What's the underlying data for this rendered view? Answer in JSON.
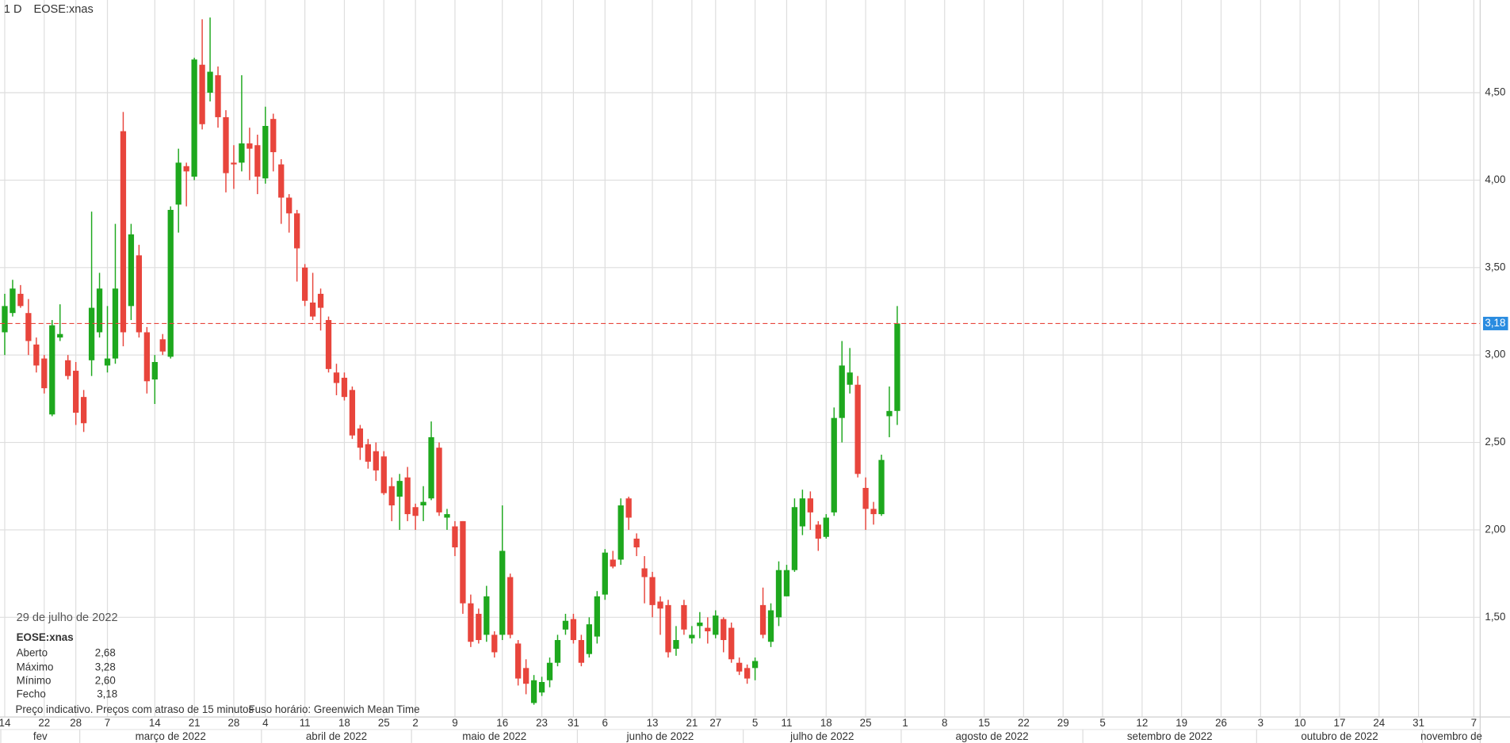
{
  "chart_data": {
    "type": "candlestick",
    "interval": "1 D",
    "symbol": "EOSE:xnas",
    "up_color": "#1ea81e",
    "down_color": "#e8453c",
    "grid": true,
    "open": [
      3.13,
      3.24,
      3.35,
      3.24,
      3.06,
      2.98,
      2.66,
      3.1,
      2.97,
      2.91,
      2.76,
      2.97,
      3.13,
      2.94,
      2.98,
      4.28,
      3.28,
      3.57,
      3.13,
      2.86,
      3.09,
      2.99,
      3.86,
      4.08,
      4.02,
      4.66,
      4.5,
      4.6,
      4.36,
      4.1,
      4.1,
      4.21,
      4.2,
      4.01,
      4.35,
      4.09,
      3.9,
      3.81,
      3.5,
      3.3,
      3.35,
      3.2,
      2.9,
      2.87,
      2.8,
      2.58,
      2.49,
      2.45,
      2.42,
      2.25,
      2.19,
      2.3,
      2.13,
      2.14,
      2.18,
      2.47,
      2.07,
      2.02,
      2.05,
      1.58,
      1.52,
      1.4,
      1.4,
      1.4,
      1.73,
      1.35,
      1.21,
      1.01,
      1.07,
      1.14,
      1.24,
      1.43,
      1.49,
      1.37,
      1.29,
      1.39,
      1.63,
      1.83,
      1.83,
      2.18,
      1.95,
      1.78,
      1.73,
      1.59,
      1.57,
      1.32,
      1.57,
      1.38,
      1.45,
      1.44,
      1.4,
      1.49,
      1.44,
      1.24,
      1.21,
      1.21,
      1.57,
      1.36,
      1.5,
      1.62,
      1.77,
      2.02,
      2.18,
      2.03,
      1.96,
      2.1,
      2.64,
      2.83,
      2.83,
      2.24,
      2.12,
      2.09,
      2.65,
      2.68
    ],
    "high": [
      3.35,
      3.43,
      3.4,
      3.32,
      3.1,
      3.0,
      3.2,
      3.29,
      3.0,
      2.96,
      2.8,
      3.82,
      3.47,
      3.28,
      3.75,
      4.39,
      3.75,
      3.63,
      3.16,
      3.0,
      3.12,
      3.85,
      4.18,
      4.1,
      4.7,
      4.92,
      4.93,
      4.65,
      4.4,
      4.2,
      4.6,
      4.3,
      4.26,
      4.42,
      4.38,
      4.12,
      3.92,
      3.83,
      3.52,
      3.47,
      3.38,
      3.22,
      2.95,
      2.9,
      2.82,
      2.6,
      2.52,
      2.5,
      2.45,
      2.3,
      2.32,
      2.36,
      2.15,
      2.25,
      2.62,
      2.5,
      2.12,
      2.05,
      2.05,
      1.63,
      1.55,
      1.68,
      1.42,
      2.14,
      1.75,
      1.37,
      1.26,
      1.17,
      1.16,
      1.27,
      1.4,
      1.52,
      1.52,
      1.4,
      1.5,
      1.65,
      1.89,
      1.88,
      2.18,
      2.19,
      1.98,
      1.85,
      1.76,
      1.62,
      1.6,
      1.45,
      1.6,
      1.45,
      1.53,
      1.5,
      1.54,
      1.5,
      1.47,
      1.27,
      1.23,
      1.27,
      1.67,
      1.58,
      1.82,
      1.8,
      2.18,
      2.23,
      2.22,
      2.05,
      2.09,
      2.7,
      3.08,
      3.04,
      2.88,
      2.3,
      2.16,
      2.43,
      2.82,
      3.28
    ],
    "low": [
      3.0,
      3.22,
      3.27,
      3.0,
      2.9,
      2.78,
      2.65,
      3.08,
      2.86,
      2.6,
      2.56,
      2.88,
      3.1,
      2.9,
      2.95,
      3.05,
      3.2,
      3.1,
      2.78,
      2.72,
      3.0,
      2.98,
      3.7,
      3.85,
      4.0,
      4.29,
      4.45,
      4.3,
      3.93,
      3.95,
      4.05,
      4.0,
      3.92,
      3.98,
      4.05,
      3.75,
      3.7,
      3.42,
      3.28,
      3.2,
      3.14,
      2.9,
      2.77,
      2.74,
      2.52,
      2.4,
      2.35,
      2.28,
      2.2,
      2.05,
      2.0,
      2.05,
      2.0,
      2.05,
      2.17,
      2.08,
      2.0,
      1.85,
      1.52,
      1.33,
      1.35,
      1.36,
      1.27,
      1.37,
      1.38,
      1.11,
      1.06,
      1.0,
      1.05,
      1.1,
      1.22,
      1.4,
      1.35,
      1.22,
      1.27,
      1.35,
      1.6,
      1.78,
      1.8,
      2.0,
      1.85,
      1.58,
      1.5,
      1.4,
      1.27,
      1.28,
      1.4,
      1.35,
      1.38,
      1.35,
      1.38,
      1.3,
      1.24,
      1.17,
      1.12,
      1.14,
      1.38,
      1.33,
      1.45,
      1.62,
      1.76,
      1.97,
      2.0,
      1.88,
      1.95,
      2.08,
      2.5,
      2.78,
      2.3,
      2.0,
      2.03,
      2.08,
      2.53,
      2.6
    ],
    "close": [
      3.28,
      3.38,
      3.28,
      3.08,
      2.94,
      2.81,
      3.17,
      3.12,
      2.88,
      2.67,
      2.61,
      3.27,
      3.38,
      2.98,
      3.38,
      3.13,
      3.69,
      3.13,
      2.85,
      2.96,
      3.02,
      3.83,
      4.1,
      4.05,
      4.69,
      4.32,
      4.62,
      4.36,
      4.04,
      4.09,
      4.21,
      4.18,
      4.02,
      4.31,
      4.16,
      3.9,
      3.81,
      3.61,
      3.31,
      3.22,
      3.27,
      2.92,
      2.84,
      2.76,
      2.54,
      2.47,
      2.39,
      2.34,
      2.21,
      2.14,
      2.28,
      2.09,
      2.08,
      2.16,
      2.53,
      2.1,
      2.09,
      1.9,
      1.58,
      1.36,
      1.37,
      1.62,
      1.3,
      1.88,
      1.4,
      1.15,
      1.12,
      1.14,
      1.13,
      1.24,
      1.37,
      1.48,
      1.37,
      1.24,
      1.46,
      1.62,
      1.87,
      1.79,
      2.14,
      2.07,
      1.9,
      1.73,
      1.57,
      1.55,
      1.3,
      1.37,
      1.43,
      1.4,
      1.47,
      1.42,
      1.51,
      1.37,
      1.26,
      1.19,
      1.15,
      1.25,
      1.4,
      1.54,
      1.77,
      1.77,
      2.13,
      2.18,
      2.1,
      1.95,
      2.07,
      2.64,
      2.94,
      2.9,
      2.32,
      2.12,
      2.09,
      2.4,
      2.68,
      3.18
    ],
    "xlim": [
      -0.6,
      186.8
    ],
    "xticks": [
      {
        "value": 0,
        "label": "14"
      },
      {
        "value": 5,
        "label": "22"
      },
      {
        "value": 9,
        "label": "28"
      },
      {
        "value": 13,
        "label": "7"
      },
      {
        "value": 19,
        "label": "14"
      },
      {
        "value": 24,
        "label": "21"
      },
      {
        "value": 29,
        "label": "28"
      },
      {
        "value": 33,
        "label": "4"
      },
      {
        "value": 38,
        "label": "11"
      },
      {
        "value": 43,
        "label": "18"
      },
      {
        "value": 48,
        "label": "25"
      },
      {
        "value": 52,
        "label": "2"
      },
      {
        "value": 57,
        "label": "9"
      },
      {
        "value": 63,
        "label": "16"
      },
      {
        "value": 68,
        "label": "23"
      },
      {
        "value": 72,
        "label": "31"
      },
      {
        "value": 76,
        "label": "6"
      },
      {
        "value": 82,
        "label": "13"
      },
      {
        "value": 87,
        "label": "21"
      },
      {
        "value": 90,
        "label": "27"
      },
      {
        "value": 95,
        "label": "5"
      },
      {
        "value": 99,
        "label": "11"
      },
      {
        "value": 104,
        "label": "18"
      },
      {
        "value": 109,
        "label": "25"
      },
      {
        "value": 114,
        "label": "1"
      },
      {
        "value": 119,
        "label": "8"
      },
      {
        "value": 124,
        "label": "15"
      },
      {
        "value": 129,
        "label": "22"
      },
      {
        "value": 134,
        "label": "29"
      },
      {
        "value": 139,
        "label": "5"
      },
      {
        "value": 144,
        "label": "12"
      },
      {
        "value": 149,
        "label": "19"
      },
      {
        "value": 154,
        "label": "26"
      },
      {
        "value": 159,
        "label": "3"
      },
      {
        "value": 164,
        "label": "10"
      },
      {
        "value": 169,
        "label": "17"
      },
      {
        "value": 174,
        "label": "24"
      },
      {
        "value": 179,
        "label": "31"
      },
      {
        "value": 186,
        "label": "7"
      }
    ],
    "month_ticks": [
      {
        "value": 0,
        "label": "fev"
      },
      {
        "value": 10,
        "label": "março de 2022"
      },
      {
        "value": 33,
        "label": "abril de 2022"
      },
      {
        "value": 52,
        "label": "maio de 2022"
      },
      {
        "value": 73,
        "label": "junho de 2022"
      },
      {
        "value": 94,
        "label": "julho de 2022"
      },
      {
        "value": 114,
        "label": "agosto de 2022"
      },
      {
        "value": 137,
        "label": "setembro de 2022"
      },
      {
        "value": 159,
        "label": "outubro de 2022"
      },
      {
        "value": 180,
        "label": "novembro de"
      }
    ],
    "ylim": [
      0.93,
      5.03
    ],
    "yticks": [
      {
        "value": 1.5,
        "label": "1,50"
      },
      {
        "value": 2,
        "label": "2,00"
      },
      {
        "value": 2.5,
        "label": "2,50"
      },
      {
        "value": 3,
        "label": "3,00"
      },
      {
        "value": 3.5,
        "label": "3,50"
      },
      {
        "value": 4,
        "label": "4,00"
      },
      {
        "value": 4.5,
        "label": "4,50"
      }
    ],
    "last_price": {
      "value": 3.18,
      "label": "3,18"
    }
  },
  "info": {
    "date": "29 de julho de 2022",
    "symbol": "EOSE:xnas",
    "rows": [
      {
        "label": "Aberto",
        "value": "2,68"
      },
      {
        "label": "Máximo",
        "value": "3,28"
      },
      {
        "label": "Mínimo",
        "value": "2,60"
      },
      {
        "label": "Fecho",
        "value": "3,18"
      }
    ]
  },
  "footer": {
    "note": "Preço indicativo. Preços com atraso de 15 minutos",
    "timezone": "Fuso horário: Greenwich Mean Time"
  }
}
